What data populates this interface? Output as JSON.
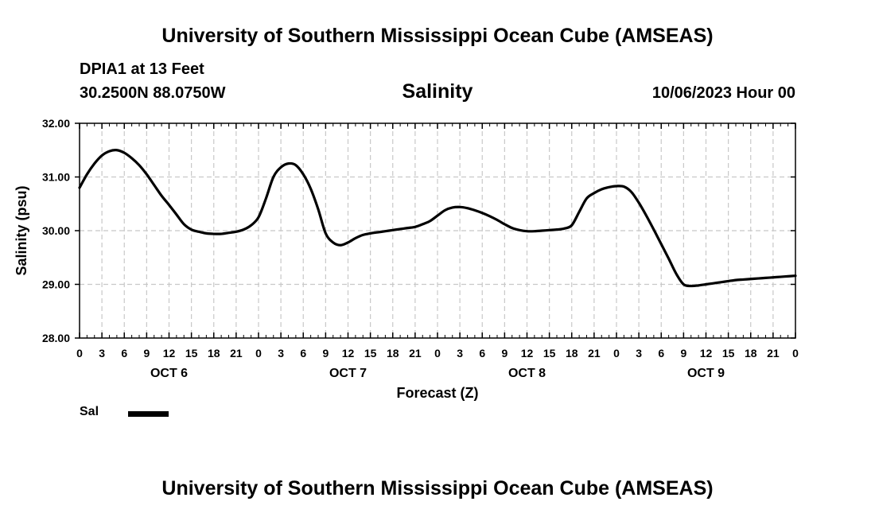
{
  "header": {
    "title": "University of Southern Mississippi Ocean Cube (AMSEAS)",
    "station": "DPIA1 at 13 Feet",
    "coordinates": "30.2500N  88.0750W",
    "chart_title": "Salinity",
    "issued": "10/06/2023 Hour 00"
  },
  "legend": {
    "label": "Sal",
    "color": "#000000"
  },
  "footer": {
    "title": "University of Southern Mississippi Ocean Cube (AMSEAS)"
  },
  "chart_data": {
    "type": "line",
    "title": "Salinity",
    "xlabel": "Forecast (Z)",
    "ylabel": "Salinity (psu)",
    "ylim": [
      28.0,
      32.0
    ],
    "yticks": [
      "28.00",
      "29.00",
      "30.00",
      "31.00",
      "32.00"
    ],
    "xlim": [
      0,
      96
    ],
    "hour_tick_labels": [
      "0",
      "3",
      "6",
      "9",
      "12",
      "15",
      "18",
      "21",
      "0",
      "3",
      "6",
      "9",
      "12",
      "15",
      "18",
      "21",
      "0",
      "3",
      "6",
      "9",
      "12",
      "15",
      "18",
      "21",
      "0",
      "3",
      "6",
      "9",
      "12",
      "15",
      "18",
      "21",
      "0"
    ],
    "day_labels": [
      {
        "label": "OCT 6",
        "hour": 12
      },
      {
        "label": "OCT 7",
        "hour": 36
      },
      {
        "label": "OCT 8",
        "hour": 60
      },
      {
        "label": "OCT 9",
        "hour": 84
      }
    ],
    "grid": true,
    "series": [
      {
        "name": "Sal",
        "x": [
          0,
          1,
          2,
          3,
          4,
          5,
          6,
          7,
          8,
          9,
          10,
          11,
          12,
          13,
          14,
          15,
          16,
          17,
          18,
          19,
          20,
          21,
          22,
          23,
          24,
          25,
          26,
          27,
          28,
          29,
          30,
          31,
          32,
          33,
          34,
          35,
          36,
          37,
          38,
          39,
          40,
          41,
          42,
          43,
          44,
          45,
          46,
          47,
          48,
          49,
          50,
          51,
          52,
          53,
          54,
          55,
          56,
          57,
          58,
          59,
          60,
          61,
          62,
          63,
          64,
          65,
          66,
          67,
          68,
          69,
          70,
          71,
          72,
          73,
          74,
          75,
          76,
          77,
          78,
          79,
          80,
          81,
          82,
          83,
          84,
          85,
          86,
          87,
          88,
          89,
          90,
          91,
          92,
          93,
          94,
          95,
          96
        ],
        "values": [
          30.8,
          31.05,
          31.25,
          31.4,
          31.48,
          31.5,
          31.45,
          31.35,
          31.22,
          31.05,
          30.85,
          30.65,
          30.48,
          30.3,
          30.12,
          30.02,
          29.98,
          29.95,
          29.94,
          29.94,
          29.96,
          29.98,
          30.02,
          30.1,
          30.25,
          30.6,
          31.0,
          31.18,
          31.25,
          31.22,
          31.05,
          30.78,
          30.4,
          29.95,
          29.78,
          29.73,
          29.78,
          29.86,
          29.92,
          29.95,
          29.97,
          29.99,
          30.01,
          30.03,
          30.05,
          30.07,
          30.12,
          30.18,
          30.28,
          30.38,
          30.43,
          30.44,
          30.42,
          30.38,
          30.33,
          30.27,
          30.2,
          30.12,
          30.05,
          30.01,
          29.99,
          29.99,
          30.0,
          30.01,
          30.02,
          30.04,
          30.1,
          30.35,
          30.6,
          30.7,
          30.77,
          30.81,
          30.83,
          30.82,
          30.72,
          30.52,
          30.28,
          30.02,
          29.75,
          29.48,
          29.2,
          29.0,
          28.97,
          28.98,
          29.0,
          29.02,
          29.04,
          29.06,
          29.08,
          29.09,
          29.1,
          29.11,
          29.12,
          29.13,
          29.14,
          29.15,
          29.16
        ]
      }
    ]
  }
}
